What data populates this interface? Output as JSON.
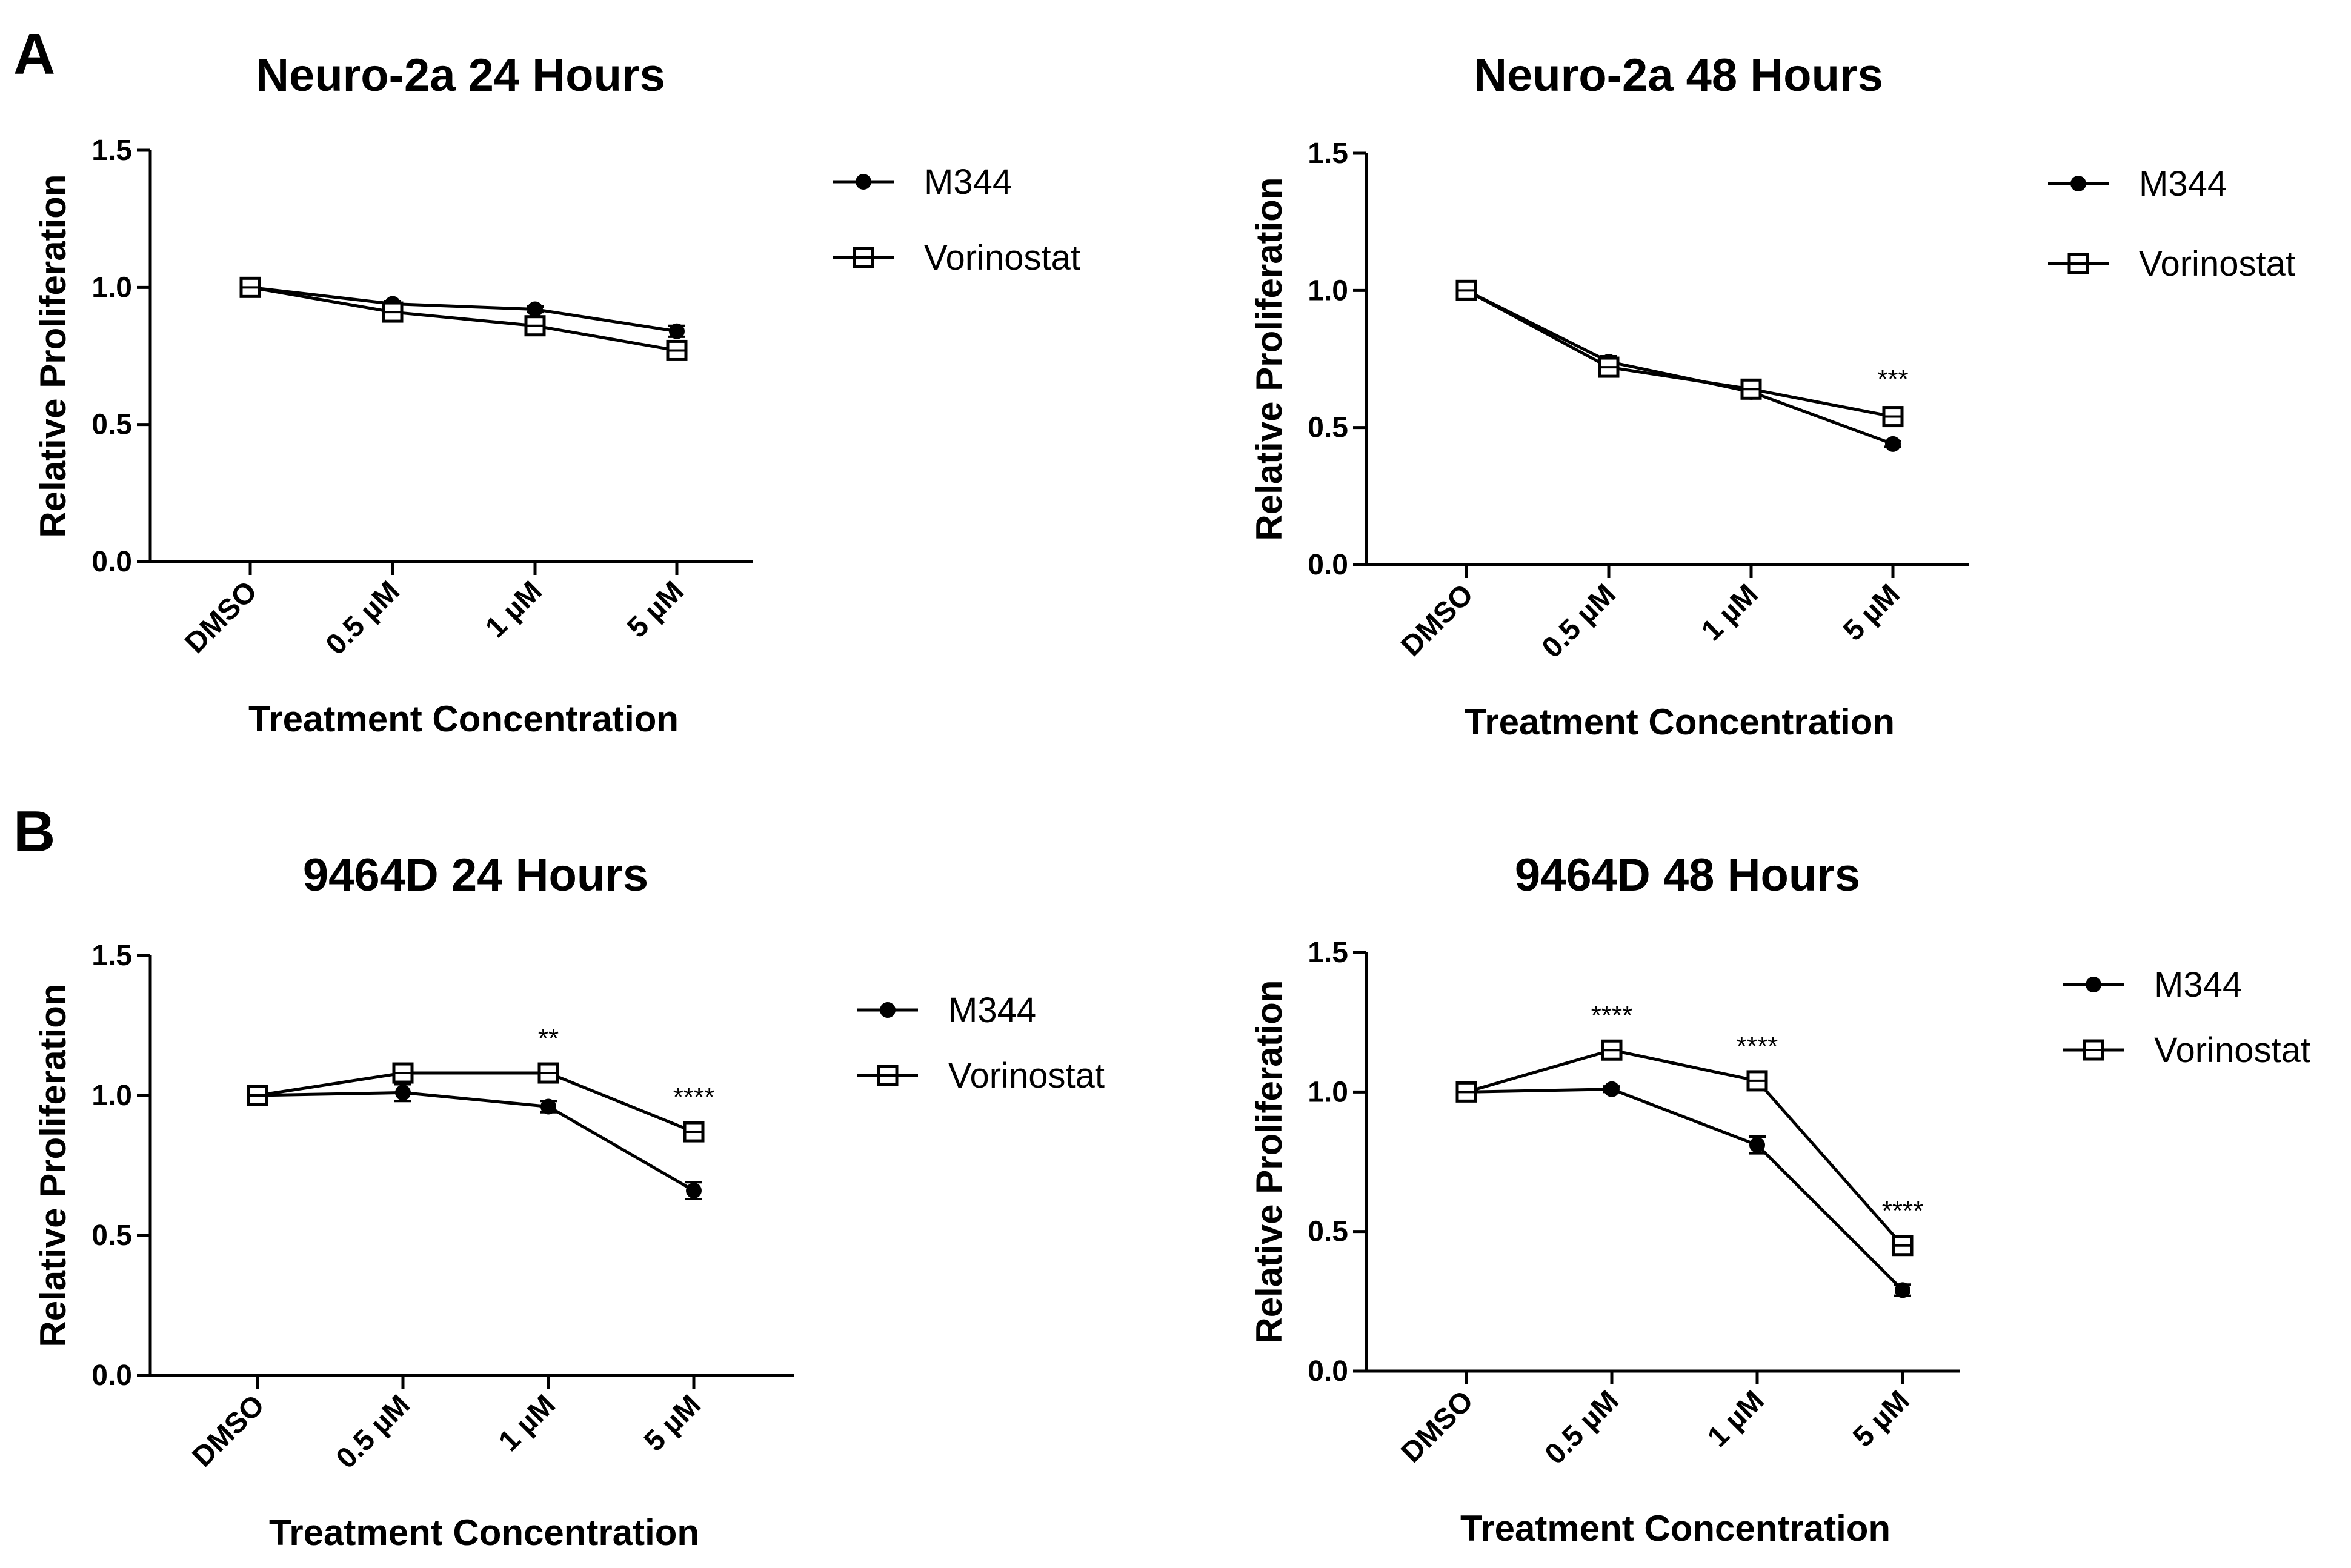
{
  "panels": [
    {
      "letter": "A"
    },
    {
      "letter": "B"
    }
  ],
  "chart_data": [
    {
      "type": "line",
      "title": "Neuro-2a 24 Hours",
      "xlabel": "Treatment Concentration",
      "ylabel": "Relative Proliferation",
      "categories": [
        "DMSO",
        "0.5 µM",
        "1 µM",
        "5 µM"
      ],
      "ylim": [
        0,
        1.5
      ],
      "yticks": [
        "0.0",
        "0.5",
        "1.0",
        "1.5"
      ],
      "series": [
        {
          "name": "M344",
          "marker": "filled-circle",
          "values": [
            1.0,
            0.94,
            0.92,
            0.84
          ],
          "errors": [
            0,
            0.01,
            0.01,
            0.02
          ]
        },
        {
          "name": "Vorinostat",
          "marker": "open-square",
          "values": [
            1.0,
            0.91,
            0.86,
            0.77
          ],
          "errors": [
            0,
            0.01,
            0.01,
            0.02
          ]
        }
      ],
      "annotations": [
        "",
        "",
        "",
        ""
      ]
    },
    {
      "type": "line",
      "title": "Neuro-2a 48 Hours",
      "xlabel": "Treatment Concentration",
      "ylabel": "Relative Proliferation",
      "categories": [
        "DMSO",
        "0.5 µM",
        "1 µM",
        "5 µM"
      ],
      "ylim": [
        0,
        1.5
      ],
      "yticks": [
        "0.0",
        "0.5",
        "1.0",
        "1.5"
      ],
      "series": [
        {
          "name": "M344",
          "marker": "filled-circle",
          "values": [
            1.0,
            0.74,
            0.63,
            0.44
          ],
          "errors": [
            0,
            0.02,
            0.01,
            0.01
          ]
        },
        {
          "name": "Vorinostat",
          "marker": "open-square",
          "values": [
            1.0,
            0.72,
            0.64,
            0.54
          ],
          "errors": [
            0,
            0.02,
            0.01,
            0.02
          ]
        }
      ],
      "annotations": [
        "",
        "",
        "",
        "***"
      ]
    },
    {
      "type": "line",
      "title": "9464D 24 Hours",
      "xlabel": "Treatment Concentration",
      "ylabel": "Relative Proliferation",
      "categories": [
        "DMSO",
        "0.5 µM",
        "1 µM",
        "5 µM"
      ],
      "ylim": [
        0,
        1.5
      ],
      "yticks": [
        "0.0",
        "0.5",
        "1.0",
        "1.5"
      ],
      "series": [
        {
          "name": "M344",
          "marker": "filled-circle",
          "values": [
            1.0,
            1.01,
            0.96,
            0.66
          ],
          "errors": [
            0,
            0.03,
            0.02,
            0.03
          ]
        },
        {
          "name": "Vorinostat",
          "marker": "open-square",
          "values": [
            1.0,
            1.08,
            1.08,
            0.87
          ],
          "errors": [
            0,
            0.01,
            0.01,
            0.01
          ]
        }
      ],
      "annotations": [
        "",
        "",
        "**",
        "****"
      ]
    },
    {
      "type": "line",
      "title": "9464D 48 Hours",
      "xlabel": "Treatment Concentration",
      "ylabel": "Relative Proliferation",
      "categories": [
        "DMSO",
        "0.5 µM",
        "1 µM",
        "5 µM"
      ],
      "ylim": [
        0,
        1.5
      ],
      "yticks": [
        "0.0",
        "0.5",
        "1.0",
        "1.5"
      ],
      "series": [
        {
          "name": "M344",
          "marker": "filled-circle",
          "values": [
            1.0,
            1.01,
            0.81,
            0.29
          ],
          "errors": [
            0,
            0.01,
            0.03,
            0.02
          ]
        },
        {
          "name": "Vorinostat",
          "marker": "open-square",
          "values": [
            1.0,
            1.15,
            1.04,
            0.45
          ],
          "errors": [
            0,
            0.01,
            0.01,
            0.01
          ]
        }
      ],
      "annotations": [
        "",
        "****",
        "****",
        "****"
      ]
    }
  ]
}
